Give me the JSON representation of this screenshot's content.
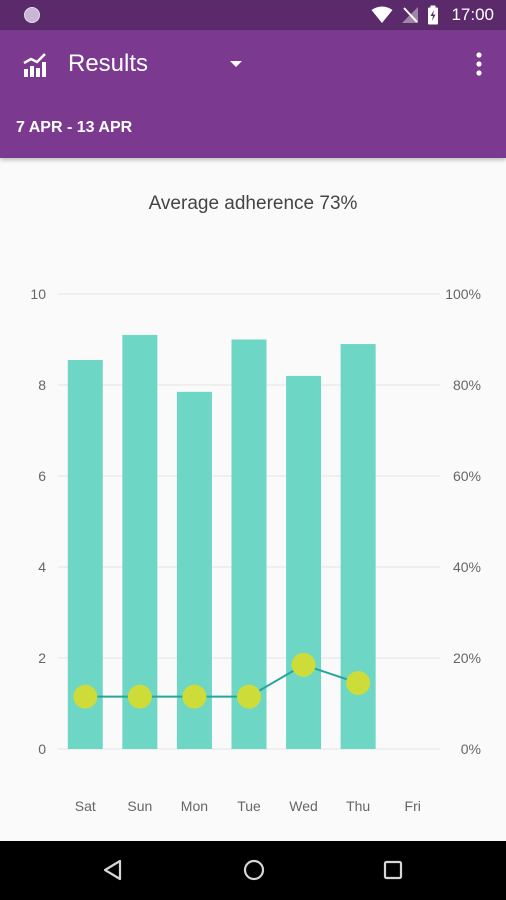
{
  "status_bar": {
    "time": "17:00",
    "icons": [
      "circle-icon",
      "wifi-icon",
      "no-signal-icon",
      "battery-charging-icon"
    ]
  },
  "app_bar": {
    "title": "Results",
    "date_range": "7 APR - 13 APR",
    "icons": [
      "chart-icon",
      "dropdown-arrow-icon",
      "more-vert-icon"
    ]
  },
  "colors": {
    "status_bar": "#5b2a6b",
    "app_bar": "#7b3a8f",
    "bar": "#6ed6c4",
    "line": "#26a69a",
    "point": "#cddc39"
  },
  "chart_data": {
    "type": "bar",
    "title": "Average adherence 73%",
    "categories": [
      "Sat",
      "Sun",
      "Mon",
      "Tue",
      "Wed",
      "Thu",
      "Fri"
    ],
    "series": [
      {
        "axis": "left",
        "type": "bar",
        "values": [
          8.55,
          9.1,
          7.85,
          9.0,
          8.2,
          8.9,
          null
        ]
      },
      {
        "axis": "right",
        "type": "line",
        "values": [
          11.5,
          11.5,
          11.5,
          11.5,
          18.5,
          14.5,
          null
        ]
      }
    ],
    "left_axis": {
      "ylim": [
        0,
        10
      ],
      "ticks": [
        "0",
        "2",
        "4",
        "6",
        "8",
        "10"
      ]
    },
    "right_axis": {
      "ylim": [
        0,
        100
      ],
      "ticks": [
        "0%",
        "20%",
        "40%",
        "60%",
        "80%",
        "100%"
      ]
    },
    "grid": true
  },
  "nav_bar": {
    "icons": [
      "back-icon",
      "home-icon",
      "recents-icon"
    ]
  }
}
